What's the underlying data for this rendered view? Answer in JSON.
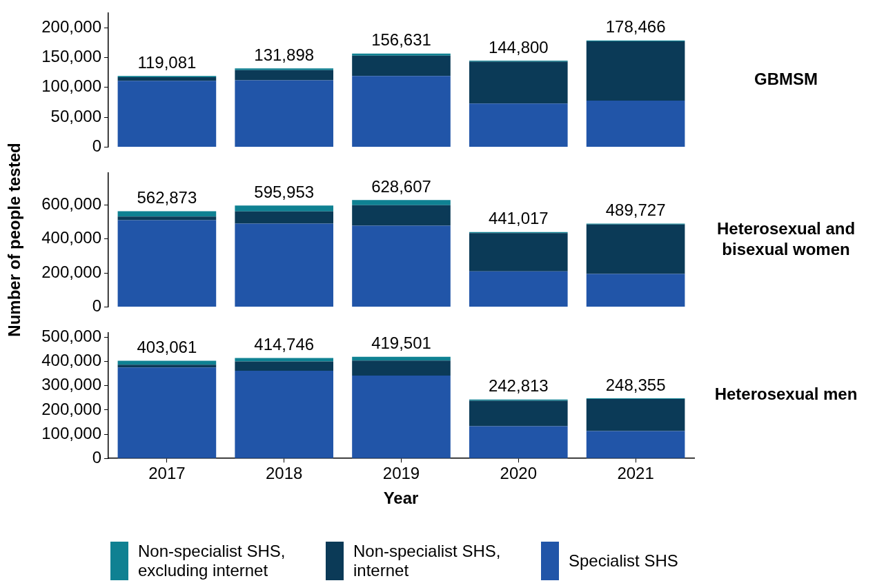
{
  "chart_data": [
    {
      "type": "bar",
      "y2label": "GBMSM",
      "categories": [
        "2017",
        "2018",
        "2019",
        "2020",
        "2021"
      ],
      "stacked": true,
      "ylim": [
        0,
        225000
      ],
      "yticks": [
        {
          "value": 0,
          "label": "0"
        },
        {
          "value": 50000,
          "label": "50,000"
        },
        {
          "value": 100000,
          "label": "100,000"
        },
        {
          "value": 150000,
          "label": "150,000"
        },
        {
          "value": 200000,
          "label": "200,000"
        }
      ],
      "grid": false,
      "legend": false,
      "tick_labels": "y",
      "series": [
        {
          "color": "#2155a8",
          "values": [
            111000,
            112000,
            119000,
            73000,
            78000
          ]
        },
        {
          "color": "#0b3a57",
          "values": [
            6000,
            17000,
            34000,
            70000,
            99000
          ]
        },
        {
          "color": "#0f8192",
          "values": [
            2081,
            2898,
            3631,
            1800,
            1466
          ]
        }
      ],
      "totals": [
        "119,081",
        "131,898",
        "156,631",
        "144,800",
        "178,466"
      ]
    },
    {
      "type": "bar",
      "y2label": "Heterosexual and bisexual women",
      "ylabel": "Number of people tested",
      "categories": [
        "2017",
        "2018",
        "2019",
        "2020",
        "2021"
      ],
      "stacked": true,
      "ylim": [
        0,
        790000
      ],
      "yticks": [
        {
          "value": 0,
          "label": "0"
        },
        {
          "value": 200000,
          "label": "200,000"
        },
        {
          "value": 400000,
          "label": "400,000"
        },
        {
          "value": 600000,
          "label": "600,000"
        }
      ],
      "grid": false,
      "legend": false,
      "tick_labels": "y",
      "series": [
        {
          "color": "#2155a8",
          "values": [
            510000,
            490000,
            478000,
            210000,
            195000
          ]
        },
        {
          "color": "#0b3a57",
          "values": [
            22000,
            72000,
            120000,
            224000,
            290000
          ]
        },
        {
          "color": "#0f8192",
          "values": [
            30873,
            33953,
            30607,
            7017,
            4727
          ]
        }
      ],
      "totals": [
        "562,873",
        "595,953",
        "628,607",
        "441,017",
        "489,727"
      ]
    },
    {
      "type": "bar",
      "y2label": "Heterosexual men",
      "xlabel": "Year",
      "categories": [
        "2017",
        "2018",
        "2019",
        "2020",
        "2021"
      ],
      "stacked": true,
      "ylim": [
        0,
        520000
      ],
      "yticks": [
        {
          "value": 0,
          "label": "0"
        },
        {
          "value": 100000,
          "label": "100,000"
        },
        {
          "value": 200000,
          "label": "200,000"
        },
        {
          "value": 300000,
          "label": "300,000"
        },
        {
          "value": 400000,
          "label": "400,000"
        },
        {
          "value": 500000,
          "label": "500,000"
        }
      ],
      "grid": false,
      "legend": "bottom",
      "series": [
        {
          "name": "Specialist SHS",
          "color": "#2155a8",
          "values": [
            375000,
            362000,
            342000,
            133000,
            113000
          ]
        },
        {
          "name": "Non-specialist SHS, internet",
          "color": "#0b3a57",
          "values": [
            12000,
            38000,
            62000,
            105000,
            132000
          ]
        },
        {
          "name": "Non-specialist SHS, excluding internet",
          "color": "#0f8192",
          "values": [
            16061,
            14746,
            15501,
            4813,
            3355
          ]
        }
      ],
      "totals": [
        "403,061",
        "414,746",
        "419,501",
        "242,813",
        "248,355"
      ]
    }
  ]
}
